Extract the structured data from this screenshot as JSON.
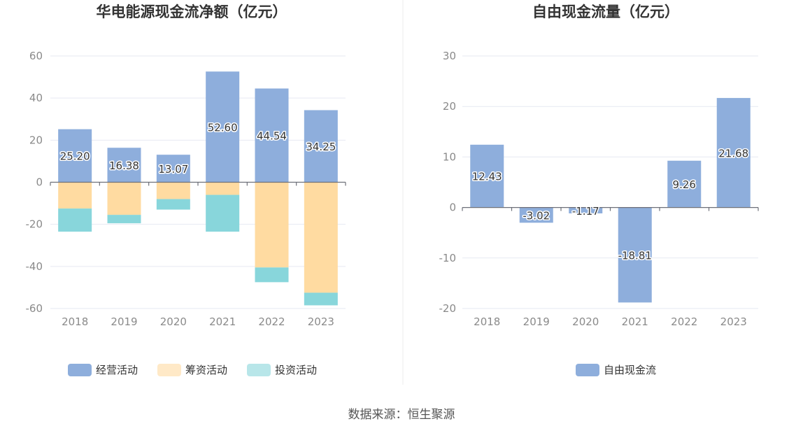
{
  "source_label": "数据来源：恒生聚源",
  "colors": {
    "operating": "#8eaedc",
    "financing": "#ffdba1",
    "investing": "#88d6db",
    "free_cash_flow": "#8eaedc"
  },
  "chart_data": [
    {
      "type": "bar",
      "stacked": true,
      "title": "华电能源现金流净额（亿元）",
      "categories": [
        "2018",
        "2019",
        "2020",
        "2021",
        "2022",
        "2023"
      ],
      "ylim": [
        -60,
        60
      ],
      "yticks": [
        60,
        40,
        20,
        0,
        -20,
        -40,
        -60
      ],
      "grid": true,
      "legend_position": "bottom",
      "series": [
        {
          "name": "经营活动",
          "values": [
            25.2,
            16.38,
            13.07,
            52.6,
            44.54,
            34.25
          ],
          "labels": [
            "25.20",
            "16.38",
            "13.07",
            "52.60",
            "44.54",
            "34.25"
          ]
        },
        {
          "name": "筹资活动",
          "values": [
            -12.5,
            -15.5,
            -8.0,
            -6.0,
            -40.5,
            -52.5
          ]
        },
        {
          "name": "投资活动",
          "values": [
            -11.0,
            -4.0,
            -5.0,
            -17.5,
            -7.0,
            -6.0
          ]
        }
      ]
    },
    {
      "type": "bar",
      "title": "自由现金流量（亿元）",
      "categories": [
        "2018",
        "2019",
        "2020",
        "2021",
        "2022",
        "2023"
      ],
      "ylim": [
        -20,
        30
      ],
      "yticks": [
        30,
        20,
        10,
        0,
        -10,
        -20
      ],
      "grid": true,
      "legend_position": "bottom",
      "series": [
        {
          "name": "自由现金流",
          "values": [
            12.43,
            -3.02,
            -1.17,
            -18.81,
            9.26,
            21.68
          ],
          "labels": [
            "12.43",
            "-3.02",
            "-1.17",
            "-18.81",
            "9.26",
            "21.68"
          ]
        }
      ]
    }
  ]
}
